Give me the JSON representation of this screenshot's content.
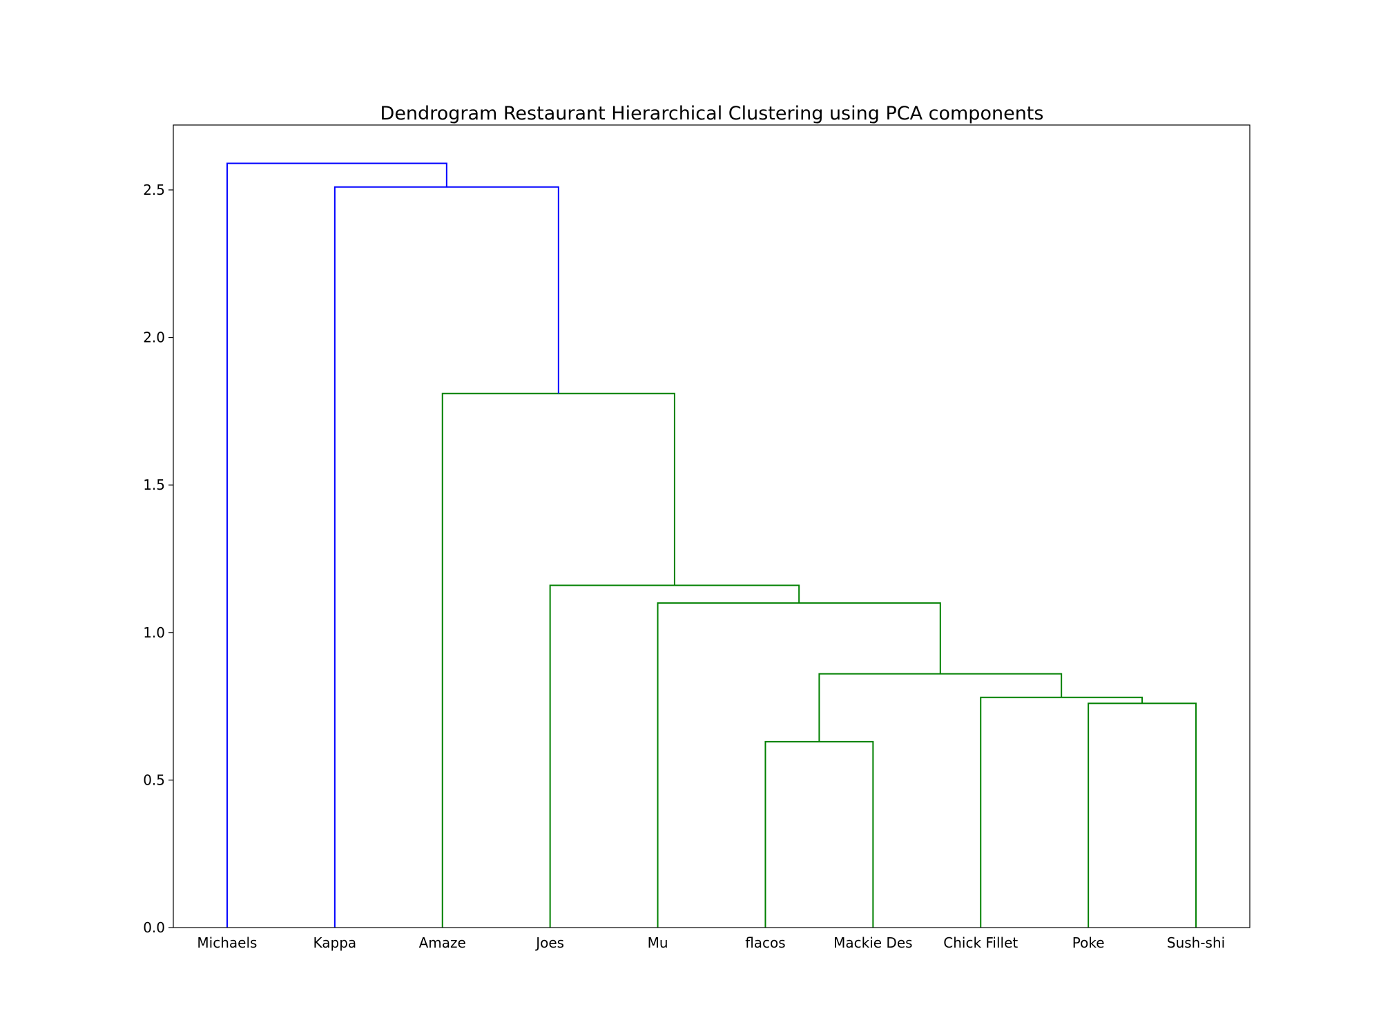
{
  "chart_data": {
    "type": "dendrogram",
    "title": "Dendrogram Restaurant Hierarchical Clustering using PCA components",
    "xlabel": "",
    "ylabel": "",
    "ylim": [
      0,
      2.72
    ],
    "yticks": [
      "0.0",
      "0.5",
      "1.0",
      "1.5",
      "2.0",
      "2.5"
    ],
    "grid": false,
    "leaves": [
      "Michaels",
      "Kappa",
      "Amaze",
      "Joes",
      "Mu",
      "flacos",
      "Mackie Des",
      "Chick Fillet",
      "Poke",
      "Sush-shi"
    ],
    "colors": {
      "above_threshold": "#0000ff",
      "cluster": "#008000",
      "frame": "#000000"
    },
    "merges": [
      {
        "left": "flacos",
        "right": "Mackie Des",
        "height": 0.63,
        "color": "cluster"
      },
      {
        "left": "Poke",
        "right": "Sush-shi",
        "height": 0.76,
        "color": "cluster"
      },
      {
        "left": "Chick Fillet",
        "right": "{Poke, Sush-shi}",
        "height": 0.78,
        "color": "cluster"
      },
      {
        "left": "{flacos, Mackie Des}",
        "right": "{Chick Fillet, Poke, Sush-shi}",
        "height": 0.86,
        "color": "cluster"
      },
      {
        "left": "Mu",
        "right": "{flacos, Mackie Des, Chick Fillet, Poke, Sush-shi}",
        "height": 1.1,
        "color": "cluster"
      },
      {
        "left": "Joes",
        "right": "{Mu, ...}",
        "height": 1.16,
        "color": "cluster"
      },
      {
        "left": "Amaze",
        "right": "{Joes, ...}",
        "height": 1.81,
        "color": "cluster"
      },
      {
        "left": "Kappa",
        "right": "{Amaze, ...}",
        "height": 2.51,
        "color": "above_threshold"
      },
      {
        "left": "Michaels",
        "right": "{Kappa, ...}",
        "height": 2.59,
        "color": "above_threshold"
      }
    ]
  }
}
